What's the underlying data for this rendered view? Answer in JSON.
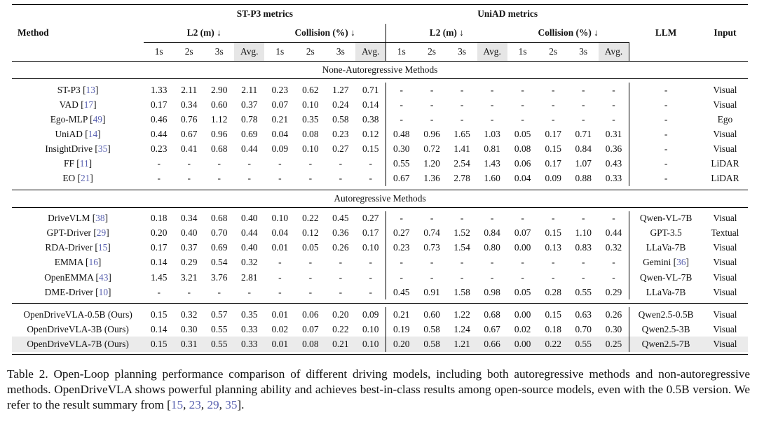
{
  "header": {
    "method": "Method",
    "stp3_group": "ST-P3 metrics",
    "uniad_group": "UniAD metrics",
    "llm": "LLM",
    "input": "Input",
    "l2": "L2 (m) ↓",
    "collision": "Collision (%) ↓",
    "cols": [
      "1s",
      "2s",
      "3s",
      "Avg."
    ]
  },
  "sections": [
    {
      "title": "None-Autoregressive Methods",
      "rows": [
        {
          "name": "ST-P3",
          "ref": "13",
          "vals": [
            "1.33",
            "2.11",
            "2.90",
            "2.11",
            "0.23",
            "0.62",
            "1.27",
            "0.71",
            "-",
            "-",
            "-",
            "-",
            "-",
            "-",
            "-",
            "-"
          ],
          "bold": [],
          "llm": "-",
          "input": "Visual"
        },
        {
          "name": "VAD",
          "ref": "17",
          "vals": [
            "0.17",
            "0.34",
            "0.60",
            "0.37",
            "0.07",
            "0.10",
            "0.24",
            "0.14",
            "-",
            "-",
            "-",
            "-",
            "-",
            "-",
            "-",
            "-"
          ],
          "bold": [],
          "llm": "-",
          "input": "Visual"
        },
        {
          "name": "Ego-MLP",
          "ref": "49",
          "vals": [
            "0.46",
            "0.76",
            "1.12",
            "0.78",
            "0.21",
            "0.35",
            "0.58",
            "0.38",
            "-",
            "-",
            "-",
            "-",
            "-",
            "-",
            "-",
            "-"
          ],
          "bold": [],
          "llm": "-",
          "input": "Ego"
        },
        {
          "name": "UniAD",
          "ref": "14",
          "vals": [
            "0.44",
            "0.67",
            "0.96",
            "0.69",
            "0.04",
            "0.08",
            "0.23",
            "0.12",
            "0.48",
            "0.96",
            "1.65",
            "1.03",
            "0.05",
            "0.17",
            "0.71",
            "0.31"
          ],
          "bold": [],
          "llm": "-",
          "input": "Visual"
        },
        {
          "name": "InsightDrive",
          "ref": "35",
          "vals": [
            "0.23",
            "0.41",
            "0.68",
            "0.44",
            "0.09",
            "0.10",
            "0.27",
            "0.15",
            "0.30",
            "0.72",
            "1.41",
            "0.81",
            "0.08",
            "0.15",
            "0.84",
            "0.36"
          ],
          "bold": [],
          "llm": "-",
          "input": "Visual"
        },
        {
          "name": "FF",
          "ref": "11",
          "vals": [
            "-",
            "-",
            "-",
            "-",
            "-",
            "-",
            "-",
            "-",
            "0.55",
            "1.20",
            "2.54",
            "1.43",
            "0.06",
            "0.17",
            "1.07",
            "0.43"
          ],
          "bold": [],
          "llm": "-",
          "input": "LiDAR"
        },
        {
          "name": "EO",
          "ref": "21",
          "vals": [
            "-",
            "-",
            "-",
            "-",
            "-",
            "-",
            "-",
            "-",
            "0.67",
            "1.36",
            "2.78",
            "1.60",
            "0.04",
            "0.09",
            "0.88",
            "0.33"
          ],
          "bold": [
            13
          ],
          "llm": "-",
          "input": "LiDAR"
        }
      ]
    },
    {
      "title": "Autoregressive Methods",
      "rows": [
        {
          "name": "DriveVLM",
          "ref": "38",
          "vals": [
            "0.18",
            "0.34",
            "0.68",
            "0.40",
            "0.10",
            "0.22",
            "0.45",
            "0.27",
            "-",
            "-",
            "-",
            "-",
            "-",
            "-",
            "-",
            "-"
          ],
          "bold": [],
          "llm": "Qwen-VL-7B",
          "input": "Visual"
        },
        {
          "name": "GPT-Driver",
          "ref": "29",
          "vals": [
            "0.20",
            "0.40",
            "0.70",
            "0.44",
            "0.04",
            "0.12",
            "0.36",
            "0.17",
            "0.27",
            "0.74",
            "1.52",
            "0.84",
            "0.07",
            "0.15",
            "1.10",
            "0.44"
          ],
          "bold": [],
          "llm": "GPT-3.5",
          "input": "Textual"
        },
        {
          "name": "RDA-Driver",
          "ref": "15",
          "vals": [
            "0.17",
            "0.37",
            "0.69",
            "0.40",
            "0.01",
            "0.05",
            "0.26",
            "0.10",
            "0.23",
            "0.73",
            "1.54",
            "0.80",
            "0.00",
            "0.13",
            "0.83",
            "0.32"
          ],
          "bold": [
            4,
            5,
            12
          ],
          "llm": "LLaVa-7B",
          "input": "Visual"
        },
        {
          "name": "EMMA",
          "ref": "16",
          "vals": [
            "0.14",
            "0.29",
            "0.54",
            "0.32",
            "-",
            "-",
            "-",
            "-",
            "-",
            "-",
            "-",
            "-",
            "-",
            "-",
            "-",
            "-"
          ],
          "bold": [
            0,
            1,
            2,
            3
          ],
          "llm": "Gemini",
          "llm_ref": "36",
          "llm_bold": true,
          "input": "Visual"
        },
        {
          "name": "OpenEMMA",
          "ref": "43",
          "vals": [
            "1.45",
            "3.21",
            "3.76",
            "2.81",
            "-",
            "-",
            "-",
            "-",
            "-",
            "-",
            "-",
            "-",
            "-",
            "-",
            "-",
            "-"
          ],
          "bold": [],
          "llm": "Qwen-VL-7B",
          "input": "Visual"
        },
        {
          "name": "DME-Driver",
          "ref": "10",
          "vals": [
            "-",
            "-",
            "-",
            "-",
            "-",
            "-",
            "-",
            "-",
            "0.45",
            "0.91",
            "1.58",
            "0.98",
            "0.05",
            "0.28",
            "0.55",
            "0.29"
          ],
          "bold": [
            14
          ],
          "llm": "LLaVa-7B",
          "input": "Visual"
        }
      ]
    },
    {
      "title": "",
      "rows": [
        {
          "name": "OpenDriveVLA-0.5B (Ours)",
          "ref": "",
          "vals": [
            "0.15",
            "0.32",
            "0.57",
            "0.35",
            "0.01",
            "0.06",
            "0.20",
            "0.09",
            "0.21",
            "0.60",
            "1.22",
            "0.68",
            "0.00",
            "0.15",
            "0.63",
            "0.26"
          ],
          "bold": [
            4,
            6,
            7,
            12
          ],
          "llm": "Qwen2.5-0.5B",
          "input": "Visual"
        },
        {
          "name": "OpenDriveVLA-3B (Ours)",
          "ref": "",
          "vals": [
            "0.14",
            "0.30",
            "0.55",
            "0.33",
            "0.02",
            "0.07",
            "0.22",
            "0.10",
            "0.19",
            "0.58",
            "1.24",
            "0.67",
            "0.02",
            "0.18",
            "0.70",
            "0.30"
          ],
          "bold": [
            0,
            8,
            9
          ],
          "llm": "Qwen2.5-3B",
          "input": "Visual"
        },
        {
          "name": "OpenDriveVLA-7B (Ours)",
          "ref": "",
          "vals": [
            "0.15",
            "0.31",
            "0.55",
            "0.33",
            "0.01",
            "0.08",
            "0.21",
            "0.10",
            "0.20",
            "0.58",
            "1.21",
            "0.66",
            "0.00",
            "0.22",
            "0.55",
            "0.25"
          ],
          "bold": [
            4,
            9,
            10,
            11,
            12,
            14,
            15
          ],
          "llm": "Qwen2.5-7B",
          "input": "Visual",
          "highlight": true
        }
      ]
    }
  ],
  "caption": {
    "label": "Table 2.",
    "text": "Open-Loop planning performance comparison of different driving models, including both autoregressive methods and non-autoregressive methods. OpenDriveVLA shows powerful planning ability and achieves best-in-class results among open-source models, even with the 0.5B version. We refer to the result summary from [",
    "refs": [
      "15",
      "23",
      "29",
      "35"
    ],
    "end": "]."
  }
}
